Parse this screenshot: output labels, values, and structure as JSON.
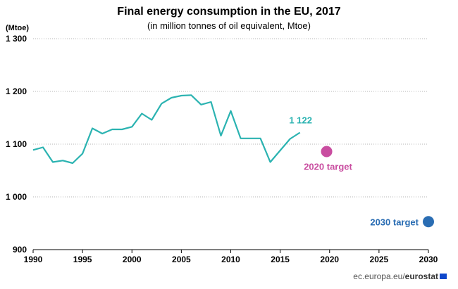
{
  "chart_data": {
    "type": "line",
    "title": "Final energy consumption in the EU, 2017",
    "subtitle": "(in million tonnes of oil equivalent, Mtoe)",
    "ylabel": "(Mtoe)",
    "xlim": [
      1990,
      2030
    ],
    "ylim": [
      900,
      1300
    ],
    "x_ticks": [
      "1990",
      "1995",
      "2000",
      "2005",
      "2010",
      "2015",
      "2020",
      "2025",
      "2030"
    ],
    "y_ticks": [
      "900",
      "1 000",
      "1 100",
      "1 200",
      "1 300"
    ],
    "grid": "horizontal-dotted",
    "series": [
      {
        "color": "#2bb3b1",
        "x": [
          1990,
          1991,
          1992,
          1993,
          1994,
          1995,
          1996,
          1997,
          1998,
          1999,
          2000,
          2001,
          2002,
          2003,
          2004,
          2005,
          2006,
          2007,
          2008,
          2009,
          2010,
          2011,
          2012,
          2013,
          2014,
          2015,
          2016,
          2017
        ],
        "values": [
          1089,
          1094,
          1066,
          1069,
          1064,
          1082,
          1130,
          1120,
          1128,
          1128,
          1133,
          1158,
          1146,
          1177,
          1188,
          1192,
          1193,
          1175,
          1180,
          1116,
          1163,
          1111,
          1111,
          1111,
          1066,
          1088,
          1110,
          1122
        ]
      }
    ],
    "last_label": "1 122",
    "targets": [
      {
        "name": "2020 target",
        "x": 2019.7,
        "y": 1086,
        "color": "#c94da0"
      },
      {
        "name": "2030 target",
        "x": 2030,
        "y": 953,
        "color": "#2a6db3"
      }
    ]
  },
  "source": {
    "prefix": "ec.europa.eu/",
    "brand": "eurostat"
  }
}
